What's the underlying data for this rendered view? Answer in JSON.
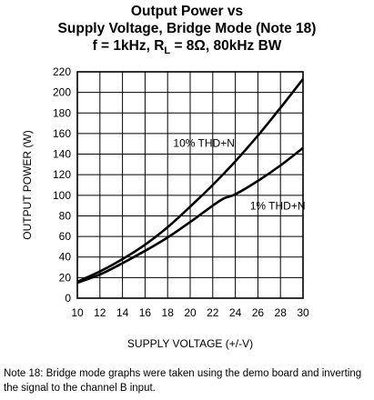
{
  "title_lines": [
    "Output Power vs",
    "Supply Voltage, Bridge Mode (Note 18)"
  ],
  "title_line3": {
    "prefix": "f = 1kHz, R",
    "subscript": "L",
    "suffix": " = 8Ω, 80kHz BW"
  },
  "note": "Note 18: Bridge mode graphs were taken using the demo board and inverting the signal to the channel B input.",
  "chart_data": {
    "type": "line",
    "title": "Output Power vs Supply Voltage, Bridge Mode (Note 18)",
    "subtitle": "f = 1kHz, RL = 8Ω, 80kHz BW",
    "xlabel": "SUPPLY VOLTAGE (+/-V)",
    "ylabel": "OUTPUT POWER (W)",
    "xlim": [
      10,
      30
    ],
    "ylim": [
      0,
      220
    ],
    "xticks": [
      10,
      12,
      14,
      16,
      18,
      20,
      22,
      24,
      26,
      28,
      30
    ],
    "yticks": [
      0,
      20,
      40,
      60,
      80,
      100,
      120,
      140,
      160,
      180,
      200,
      220
    ],
    "grid": true,
    "series": [
      {
        "name": "10% THD+N",
        "x": [
          10,
          12,
          14,
          16,
          18,
          20,
          22,
          24,
          26,
          28,
          30
        ],
        "y": [
          16,
          26,
          38,
          52,
          69,
          89,
          110,
          133,
          158,
          185,
          213
        ]
      },
      {
        "name": "1% THD+N",
        "x": [
          10,
          12,
          14,
          16,
          18,
          20,
          22,
          23,
          24,
          26,
          28,
          30
        ],
        "y": [
          15,
          23,
          34,
          46,
          59,
          74,
          90,
          97,
          101,
          114,
          129,
          146
        ]
      }
    ],
    "annotations": [
      {
        "text": "10% THD+N",
        "series": 0
      },
      {
        "text": "1% THD+N",
        "series": 1
      }
    ]
  }
}
